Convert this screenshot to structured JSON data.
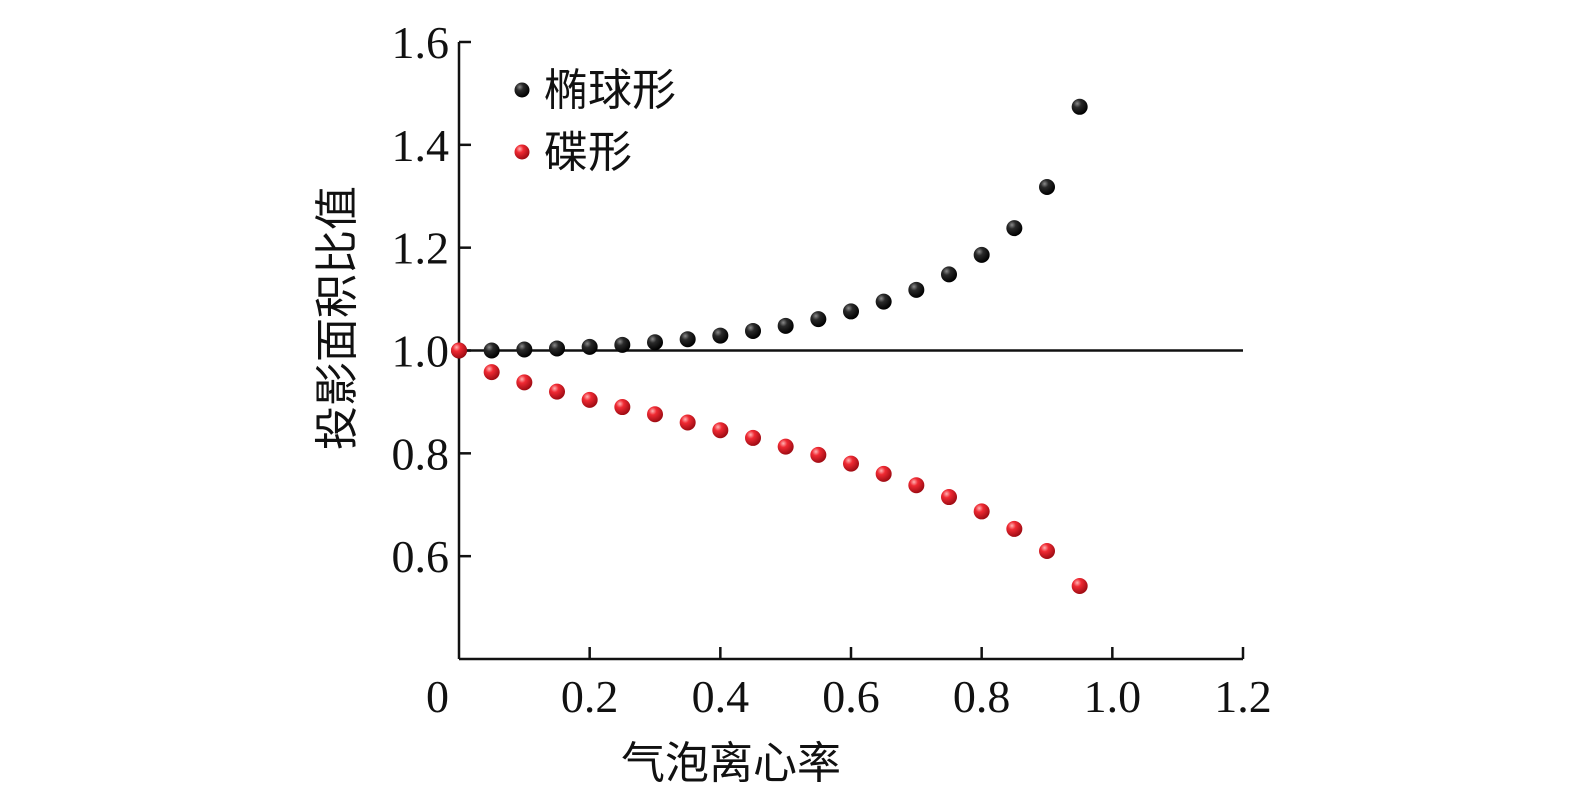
{
  "chart_data": {
    "type": "scatter",
    "title": "",
    "xlabel": "气泡离心率",
    "ylabel": "投影面积比值",
    "xlim": [
      0,
      1.2
    ],
    "ylim": [
      0.4,
      1.6
    ],
    "xticks": [
      0,
      0.2,
      0.4,
      0.6,
      0.8,
      1.0,
      1.2
    ],
    "xtick_labels": [
      "0",
      "0.2",
      "0.4",
      "0.6",
      "0.8",
      "1.0",
      "1.2"
    ],
    "yticks": [
      0.6,
      0.8,
      1.0,
      1.2,
      1.4,
      1.6
    ],
    "ytick_labels": [
      "0.6",
      "0.8",
      "1.0",
      "1.2",
      "1.4",
      "1.6"
    ],
    "reference_line_y": 1.0,
    "legend_position": "top-left",
    "series": [
      {
        "name": "椭球形",
        "color": "#111111",
        "x": [
          0,
          0.05,
          0.1,
          0.15,
          0.2,
          0.25,
          0.3,
          0.35,
          0.4,
          0.45,
          0.5,
          0.55,
          0.6,
          0.65,
          0.7,
          0.75,
          0.8,
          0.85,
          0.9,
          0.95
        ],
        "y": [
          1.0,
          1.0,
          1.002,
          1.004,
          1.007,
          1.011,
          1.016,
          1.022,
          1.029,
          1.038,
          1.048,
          1.061,
          1.076,
          1.095,
          1.118,
          1.148,
          1.186,
          1.238,
          1.318,
          1.474
        ]
      },
      {
        "name": "碟形",
        "color": "#e0202a",
        "x": [
          0,
          0.05,
          0.1,
          0.15,
          0.2,
          0.25,
          0.3,
          0.35,
          0.4,
          0.45,
          0.5,
          0.55,
          0.6,
          0.65,
          0.7,
          0.75,
          0.8,
          0.85,
          0.9,
          0.95
        ],
        "y": [
          1.0,
          0.958,
          0.938,
          0.92,
          0.904,
          0.89,
          0.876,
          0.86,
          0.845,
          0.83,
          0.813,
          0.797,
          0.78,
          0.76,
          0.738,
          0.715,
          0.687,
          0.653,
          0.61,
          0.542
        ]
      }
    ]
  }
}
